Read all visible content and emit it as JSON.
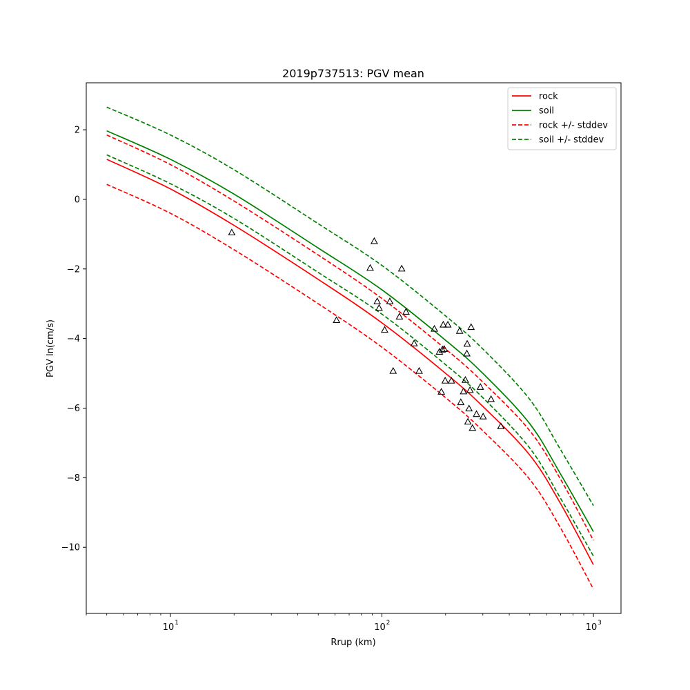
{
  "chart_data": {
    "type": "line",
    "title": "2019p737513: PGV mean",
    "xlabel": "Rrup (km)",
    "ylabel": "PGV ln(cm/s)",
    "xscale": "log",
    "xlim": [
      4,
      1350
    ],
    "ylim": [
      -11.9,
      3.35
    ],
    "x_ticks": [
      10,
      100,
      1000
    ],
    "x_tick_labels": [
      "10",
      "10",
      "10"
    ],
    "x_tick_exponents": [
      "1",
      "2",
      "3"
    ],
    "y_ticks": [
      2,
      0,
      -2,
      -4,
      -6,
      -8,
      -10
    ],
    "y_tick_labels": [
      "2",
      "0",
      "−2",
      "−4",
      "−6",
      "−8",
      "−10"
    ],
    "grid": false,
    "legend_position": "top-right",
    "series": [
      {
        "name": "rock",
        "color": "#ff0000",
        "style": "solid",
        "x": [
          5,
          10,
          20,
          50,
          100,
          200,
          300,
          500,
          700,
          1000
        ],
        "y": [
          1.15,
          0.3,
          -0.75,
          -2.3,
          -3.55,
          -5.0,
          -5.95,
          -7.35,
          -8.75,
          -10.5
        ]
      },
      {
        "name": "soil",
        "color": "#008000",
        "style": "solid",
        "x": [
          5,
          10,
          20,
          50,
          100,
          200,
          300,
          500,
          700,
          1000
        ],
        "y": [
          1.97,
          1.15,
          0.15,
          -1.4,
          -2.6,
          -4.05,
          -5.0,
          -6.45,
          -7.9,
          -9.55
        ]
      },
      {
        "name": "rock +/- stddev",
        "color": "#ff0000",
        "style": "dashed",
        "x": [
          5,
          10,
          20,
          50,
          100,
          200,
          300,
          500,
          700,
          1000
        ],
        "y": [
          1.85,
          1.0,
          -0.05,
          -1.6,
          -2.85,
          -4.3,
          -5.25,
          -6.65,
          -8.05,
          -9.8
        ]
      },
      {
        "name": "",
        "color": "#ff0000",
        "style": "dashed",
        "x": [
          5,
          10,
          20,
          50,
          100,
          200,
          300,
          500,
          700,
          1000
        ],
        "y": [
          0.43,
          -0.4,
          -1.45,
          -3.0,
          -4.25,
          -5.7,
          -6.65,
          -8.05,
          -9.45,
          -11.2
        ]
      },
      {
        "name": "soil +/- stddev",
        "color": "#008000",
        "style": "dashed",
        "x": [
          5,
          10,
          20,
          50,
          100,
          200,
          300,
          500,
          700,
          1000
        ],
        "y": [
          2.65,
          1.85,
          0.85,
          -0.7,
          -1.9,
          -3.35,
          -4.3,
          -5.75,
          -7.2,
          -8.8
        ]
      },
      {
        "name": "",
        "color": "#008000",
        "style": "dashed",
        "x": [
          5,
          10,
          20,
          50,
          100,
          200,
          300,
          500,
          700,
          1000
        ],
        "y": [
          1.28,
          0.45,
          -0.55,
          -2.1,
          -3.3,
          -4.75,
          -5.7,
          -7.15,
          -8.6,
          -10.25
        ]
      }
    ],
    "observations": {
      "marker": "open-triangle",
      "color": "#000000",
      "points": [
        [
          19.5,
          -0.95
        ],
        [
          61,
          -3.47
        ],
        [
          88,
          -1.97
        ],
        [
          92,
          -1.2
        ],
        [
          95,
          -2.93
        ],
        [
          97,
          -3.12
        ],
        [
          103,
          -3.75
        ],
        [
          109,
          -2.93
        ],
        [
          113,
          -4.93
        ],
        [
          121,
          -3.37
        ],
        [
          124,
          -1.99
        ],
        [
          130,
          -3.23
        ],
        [
          142,
          -4.14
        ],
        [
          150,
          -4.93
        ],
        [
          177,
          -3.72
        ],
        [
          187,
          -4.38
        ],
        [
          191,
          -5.53
        ],
        [
          193,
          -4.32
        ],
        [
          195,
          -3.6
        ],
        [
          197,
          -4.3
        ],
        [
          199,
          -5.21
        ],
        [
          205,
          -3.6
        ],
        [
          213,
          -5.21
        ],
        [
          233,
          -3.78
        ],
        [
          236,
          -5.83
        ],
        [
          243,
          -5.52
        ],
        [
          248,
          -5.19
        ],
        [
          252,
          -4.43
        ],
        [
          253,
          -4.15
        ],
        [
          255,
          -6.39
        ],
        [
          258,
          -6.01
        ],
        [
          261,
          -5.48
        ],
        [
          264,
          -3.67
        ],
        [
          268,
          -6.57
        ],
        [
          280,
          -6.17
        ],
        [
          292,
          -5.39
        ],
        [
          301,
          -6.24
        ],
        [
          328,
          -5.74
        ],
        [
          365,
          -6.52
        ]
      ]
    }
  }
}
